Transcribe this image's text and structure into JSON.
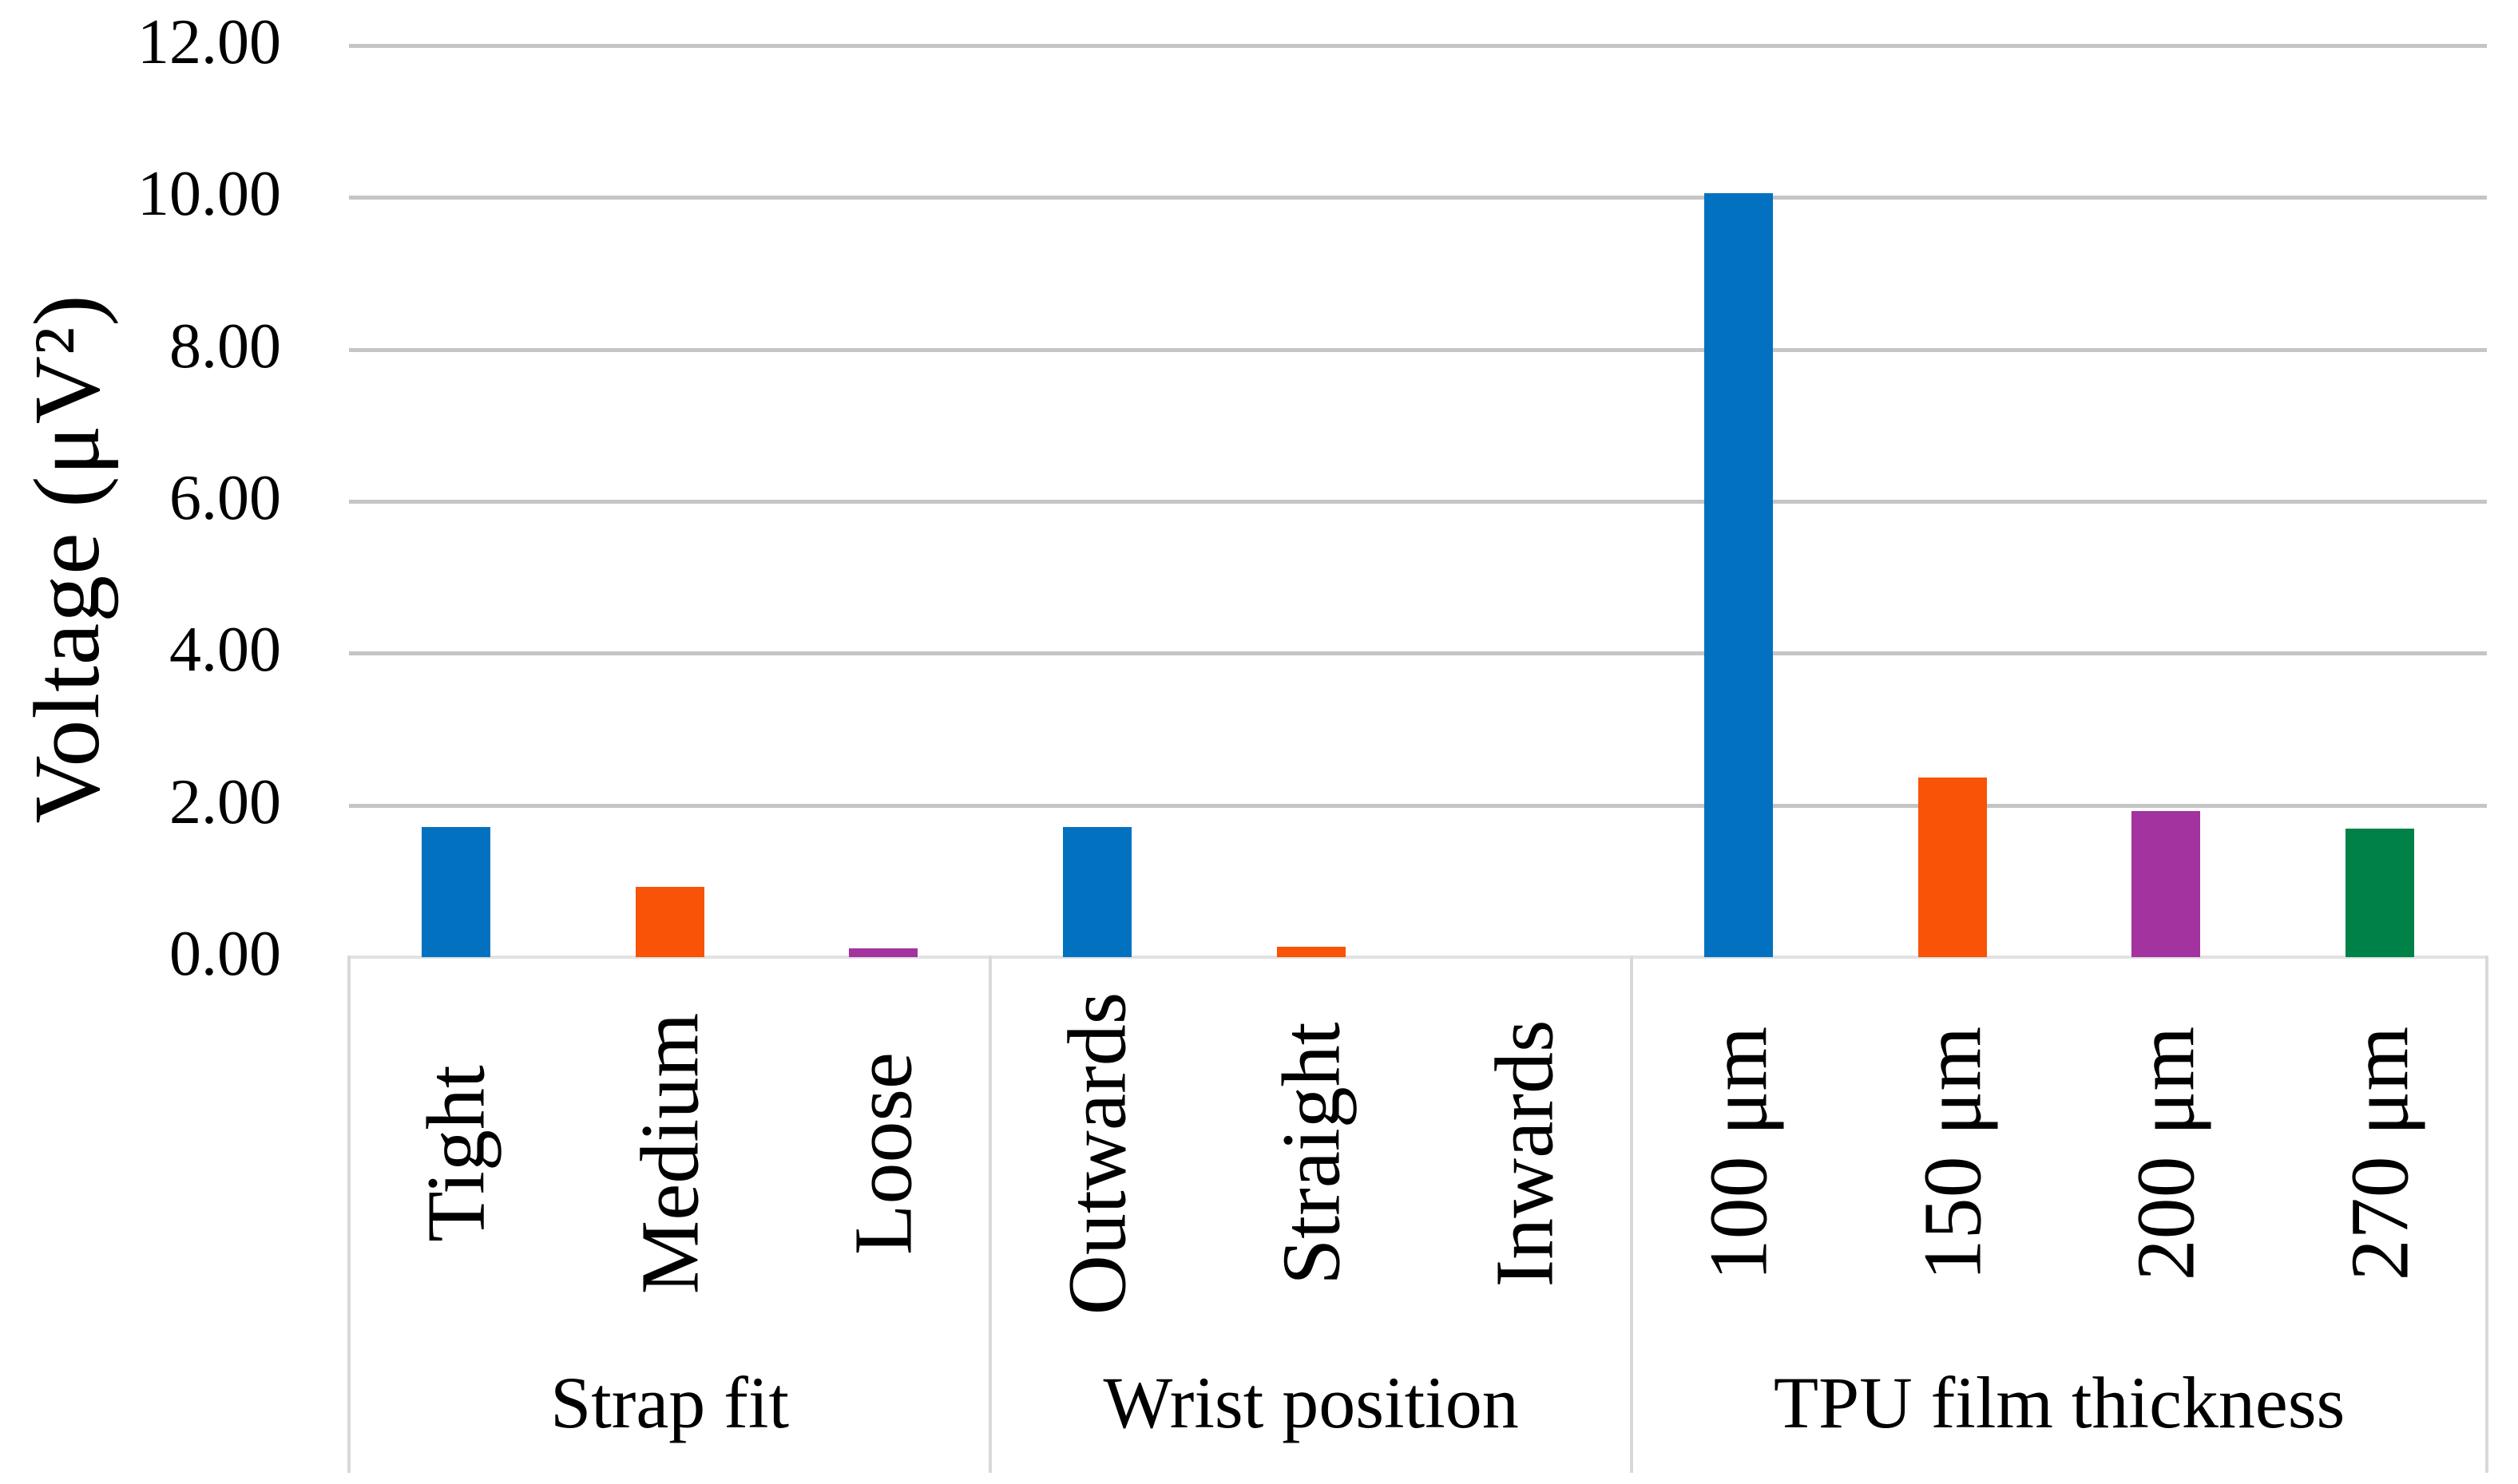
{
  "chart_data": {
    "type": "bar",
    "title": "",
    "ylabel": "Voltage (μV²)",
    "xlabel": "",
    "ylim": [
      0,
      12
    ],
    "ytick_step": 2,
    "ytick_labels": [
      "0.00",
      "2.00",
      "4.00",
      "6.00",
      "8.00",
      "10.00",
      "12.00"
    ],
    "grid": true,
    "legend": "none",
    "groups": [
      {
        "label": "Strap fit",
        "categories": [
          "Tight",
          "Medium",
          "Loose"
        ],
        "values": [
          1.71,
          0.92,
          0.12
        ],
        "colors": [
          "blue",
          "orange",
          "purple"
        ]
      },
      {
        "label": "Wrist position",
        "categories": [
          "Outwards",
          "Straight",
          "Inwards"
        ],
        "values": [
          1.71,
          0.14,
          0.0
        ],
        "colors": [
          "blue",
          "orange",
          "purple"
        ]
      },
      {
        "label": "TPU film thickness",
        "categories": [
          "100 μm",
          "150 μm",
          "200 μm",
          "270 μm"
        ],
        "values": [
          10.06,
          2.36,
          1.92,
          1.69
        ],
        "colors": [
          "blue",
          "orange",
          "purple",
          "green"
        ]
      }
    ],
    "palette": {
      "blue": "#0272C0",
      "orange": "#F85306",
      "purple": "#A2339F",
      "green": "#008148"
    },
    "grid_color": "#C5C5C5",
    "axis_line_color": "#E2E2E2",
    "separator_color": "#D9D9D9",
    "text_color": "#000000",
    "background_color": "#FFFFFF"
  }
}
